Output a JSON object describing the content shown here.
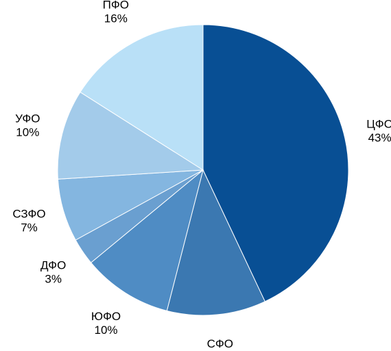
{
  "chart_data": {
    "type": "pie",
    "title": "",
    "slices": [
      {
        "label": "ЦФО",
        "value": 43,
        "value_label": "43%",
        "color": "#084f94"
      },
      {
        "label": "СФО",
        "value": 11,
        "value_label": "11%",
        "color": "#3b78b1"
      },
      {
        "label": "ЮФО",
        "value": 10,
        "value_label": "10%",
        "color": "#4f8cc4"
      },
      {
        "label": "ДФО",
        "value": 3,
        "value_label": "3%",
        "color": "#6a9fd0"
      },
      {
        "label": "СЗФО",
        "value": 7,
        "value_label": "7%",
        "color": "#84b6e0"
      },
      {
        "label": "УФО",
        "value": 10,
        "value_label": "10%",
        "color": "#a3cbea"
      },
      {
        "label": "ПФО",
        "value": 16,
        "value_label": "16%",
        "color": "#b9e0f7"
      }
    ],
    "start": "12 o'clock",
    "direction": "clockwise",
    "legend": "none"
  }
}
